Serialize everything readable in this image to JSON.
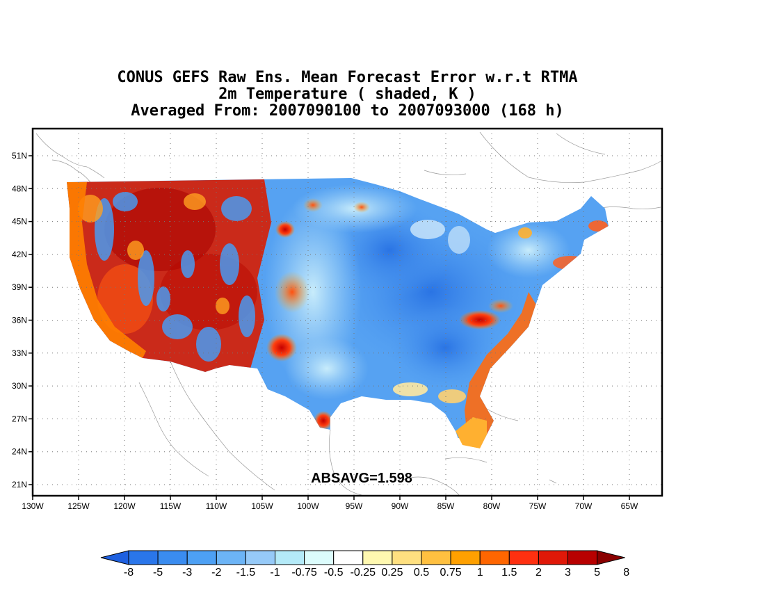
{
  "title_lines": [
    "CONUS GEFS Raw Ens. Mean Forecast Error w.r.t RTMA",
    "2m Temperature ( shaded, K )",
    "Averaged From: 2007090100 to 2007093000 (168 h)"
  ],
  "annotation": "ABSAVG=1.598",
  "map": {
    "lon_labels": [
      "130W",
      "125W",
      "120W",
      "115W",
      "110W",
      "105W",
      "100W",
      "95W",
      "90W",
      "85W",
      "80W",
      "75W",
      "70W",
      "65W"
    ],
    "lat_labels": [
      "51N",
      "48N",
      "45N",
      "42N",
      "39N",
      "36N",
      "33N",
      "30N",
      "27N",
      "24N",
      "21N"
    ],
    "region": "CONUS",
    "dominant_pattern": "warm (positive) error over western mountains and coasts, cool (negative) error over central and eastern US"
  },
  "colorbar": {
    "labels": [
      "-8",
      "-5",
      "-3",
      "-2",
      "-1.5",
      "-1",
      "-0.75",
      "-0.5",
      "-0.25",
      "0.25",
      "0.5",
      "0.75",
      "1",
      "1.5",
      "2",
      "3",
      "5",
      "8"
    ],
    "colors": [
      "#1e60e0",
      "#2a76ea",
      "#3a8cf0",
      "#4da0f4",
      "#6cb4f6",
      "#96caf8",
      "#b4eaf8",
      "#dcfcfc",
      "#ffffff",
      "#fff8b0",
      "#ffe080",
      "#ffc040",
      "#ffa000",
      "#ff6600",
      "#ff3010",
      "#e01808",
      "#b80000",
      "#8a0000"
    ]
  }
}
